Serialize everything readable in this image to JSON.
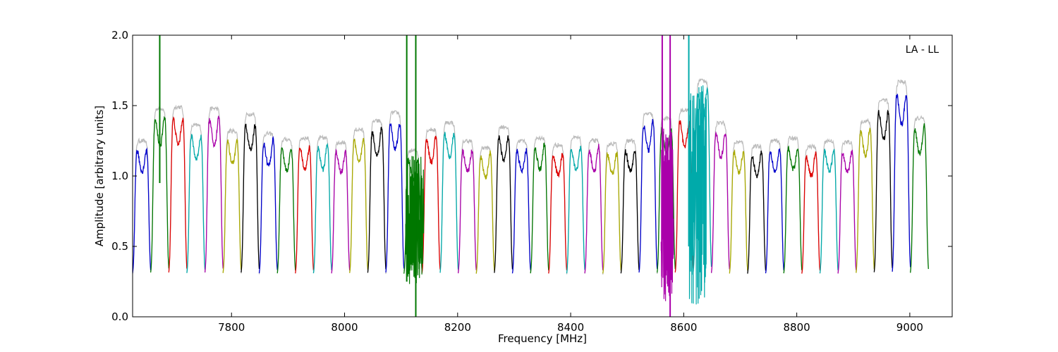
{
  "chart_data": {
    "type": "line",
    "title": "",
    "xlabel": "Frequency [MHz]",
    "ylabel": "Amplitude [arbitrary units]",
    "annotation": "LA - LL",
    "xlim": [
      7625,
      9075
    ],
    "ylim": [
      0.0,
      2.0
    ],
    "xticks": [
      7800,
      8000,
      8200,
      8400,
      8600,
      8800,
      9000
    ],
    "yticks": [
      "0.0",
      "0.5",
      "1.0",
      "1.5",
      "2.0"
    ],
    "grid": false,
    "legend": "none",
    "colors": [
      "#0000cc",
      "#007700",
      "#dd0000",
      "#00aaaa",
      "#aa00aa",
      "#aaaa00",
      "#000000"
    ],
    "background_color": "#bbbbbb",
    "channel_width_mhz": 32,
    "first_channel_start_mhz": 7625,
    "peak_amplitudes": [
      1.22,
      1.45,
      1.46,
      1.33,
      1.45,
      1.29,
      1.41,
      1.27,
      1.23,
      1.24,
      1.24,
      1.21,
      1.3,
      1.36,
      1.42,
      1.15,
      1.3,
      1.35,
      1.22,
      1.17,
      1.32,
      1.22,
      1.24,
      1.19,
      1.24,
      1.22,
      1.2,
      1.22,
      1.41,
      1.38,
      1.44,
      1.65,
      1.35,
      1.21,
      1.18,
      1.22,
      1.24,
      1.18,
      1.22,
      1.21,
      1.36,
      1.51,
      1.64,
      1.38
    ],
    "trough_amplitude": 0.28,
    "rfi_spikes": [
      {
        "x": 7673,
        "y_min": 0.95,
        "y_max": 2.0,
        "color": "#007700"
      },
      {
        "x": 8110,
        "y_min": 0.25,
        "y_max": 2.0,
        "color": "#007700"
      },
      {
        "x": 8126,
        "y_min": 0.0,
        "y_max": 2.0,
        "color": "#007700"
      },
      {
        "x": 8562,
        "y_min": 0.6,
        "y_max": 2.0,
        "color": "#aa00aa"
      },
      {
        "x": 8576,
        "y_min": 0.0,
        "y_max": 2.0,
        "color": "#aa00aa"
      },
      {
        "x": 8609,
        "y_min": 0.5,
        "y_max": 2.0,
        "color": "#00aaaa"
      }
    ],
    "rfi_regions": [
      {
        "x_start": 8108,
        "x_end": 8140,
        "y_min": 0.22,
        "y_max": 1.15,
        "color": "#007700"
      },
      {
        "x_start": 8560,
        "x_end": 8582,
        "y_min": 0.1,
        "y_max": 1.35,
        "color": "#aa00aa"
      },
      {
        "x_start": 8610,
        "x_end": 8640,
        "y_min": 0.08,
        "y_max": 1.65,
        "color": "#00aaaa"
      }
    ]
  }
}
